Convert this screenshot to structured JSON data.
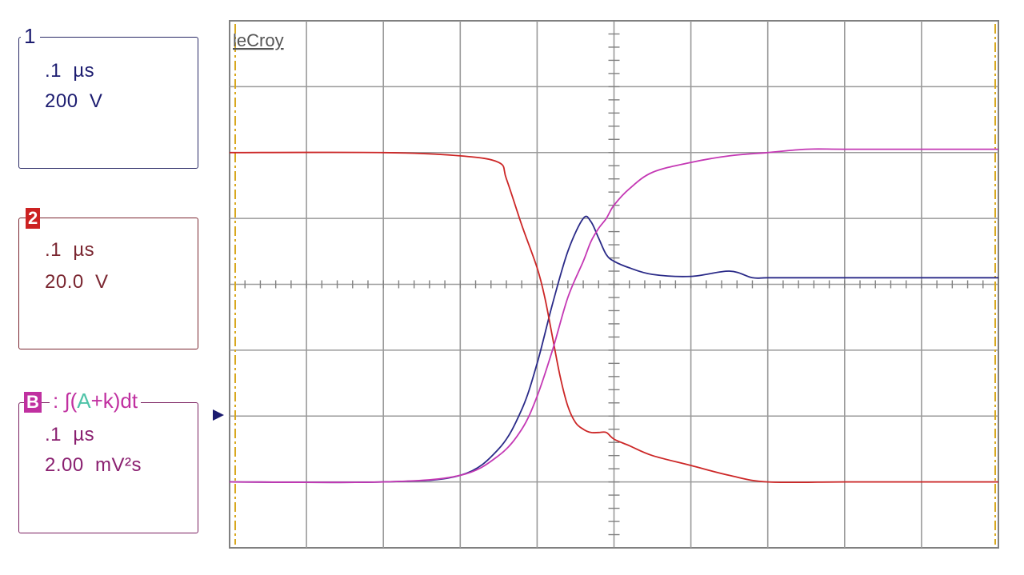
{
  "brand": "leCroy",
  "channels": {
    "ch1": {
      "id": "1",
      "time_div": ".1  µs",
      "volt_div": "200  V",
      "color": "#1c1c70"
    },
    "ch2": {
      "id": "2",
      "time_div": ".1  µs",
      "volt_div": "20.0  V",
      "color": "#cc2222"
    },
    "chB": {
      "id": "B",
      "formula_prefix": ": ∫(",
      "formula_hl": "A",
      "formula_suffix": "+k)dt",
      "time_div": ".1  µs",
      "volt_div": "2.00  mV²s",
      "color": "#c030a0",
      "highlight_color": "#4fc3a8"
    }
  },
  "chart_data": {
    "type": "line",
    "title": "",
    "xlabel": "",
    "ylabel": "",
    "x_unit": "µs",
    "y_unit": "divisions",
    "xlim": [
      -0.5,
      0.5
    ],
    "ylim": [
      -4,
      4
    ],
    "x_divisions": 10,
    "y_divisions": 8,
    "grid": true,
    "series": [
      {
        "name": "",
        "channel": "1",
        "color": "#2a2a88",
        "x": [
          -0.5,
          -0.3,
          -0.2,
          -0.15,
          -0.12,
          -0.1,
          -0.08,
          -0.06,
          -0.04,
          -0.03,
          -0.02,
          -0.01,
          0.0,
          0.02,
          0.05,
          0.1,
          0.15,
          0.18,
          0.2,
          0.25,
          0.3,
          0.4,
          0.5
        ],
        "y": [
          -3.0,
          -3.0,
          -2.9,
          -2.5,
          -1.9,
          -1.2,
          -0.3,
          0.5,
          1.0,
          0.95,
          0.7,
          0.45,
          0.35,
          0.25,
          0.15,
          0.12,
          0.2,
          0.1,
          0.1,
          0.1,
          0.1,
          0.1,
          0.1
        ]
      },
      {
        "name": "",
        "channel": "2",
        "color": "#cc2626",
        "x": [
          -0.5,
          -0.3,
          -0.2,
          -0.15,
          -0.14,
          -0.12,
          -0.1,
          -0.09,
          -0.08,
          -0.07,
          -0.06,
          -0.05,
          -0.04,
          -0.03,
          -0.02,
          -0.01,
          0.0,
          0.02,
          0.05,
          0.1,
          0.15,
          0.2,
          0.3,
          0.4,
          0.5
        ],
        "y": [
          2.0,
          2.0,
          1.95,
          1.85,
          1.6,
          0.9,
          0.25,
          -0.2,
          -0.8,
          -1.4,
          -1.85,
          -2.1,
          -2.2,
          -2.25,
          -2.25,
          -2.25,
          -2.35,
          -2.45,
          -2.6,
          -2.75,
          -2.9,
          -3.0,
          -3.0,
          -3.0,
          -3.0
        ]
      },
      {
        "name": "",
        "channel": "B",
        "color": "#c438b4",
        "x": [
          -0.5,
          -0.3,
          -0.2,
          -0.15,
          -0.12,
          -0.1,
          -0.08,
          -0.06,
          -0.04,
          -0.03,
          -0.02,
          -0.01,
          0.0,
          0.02,
          0.05,
          0.1,
          0.15,
          0.2,
          0.25,
          0.3,
          0.4,
          0.5
        ],
        "y": [
          -3.0,
          -3.0,
          -2.9,
          -2.6,
          -2.2,
          -1.7,
          -1.0,
          -0.2,
          0.35,
          0.65,
          0.85,
          1.0,
          1.2,
          1.45,
          1.7,
          1.85,
          1.95,
          2.0,
          2.05,
          2.05,
          2.05,
          2.05
        ]
      }
    ]
  }
}
